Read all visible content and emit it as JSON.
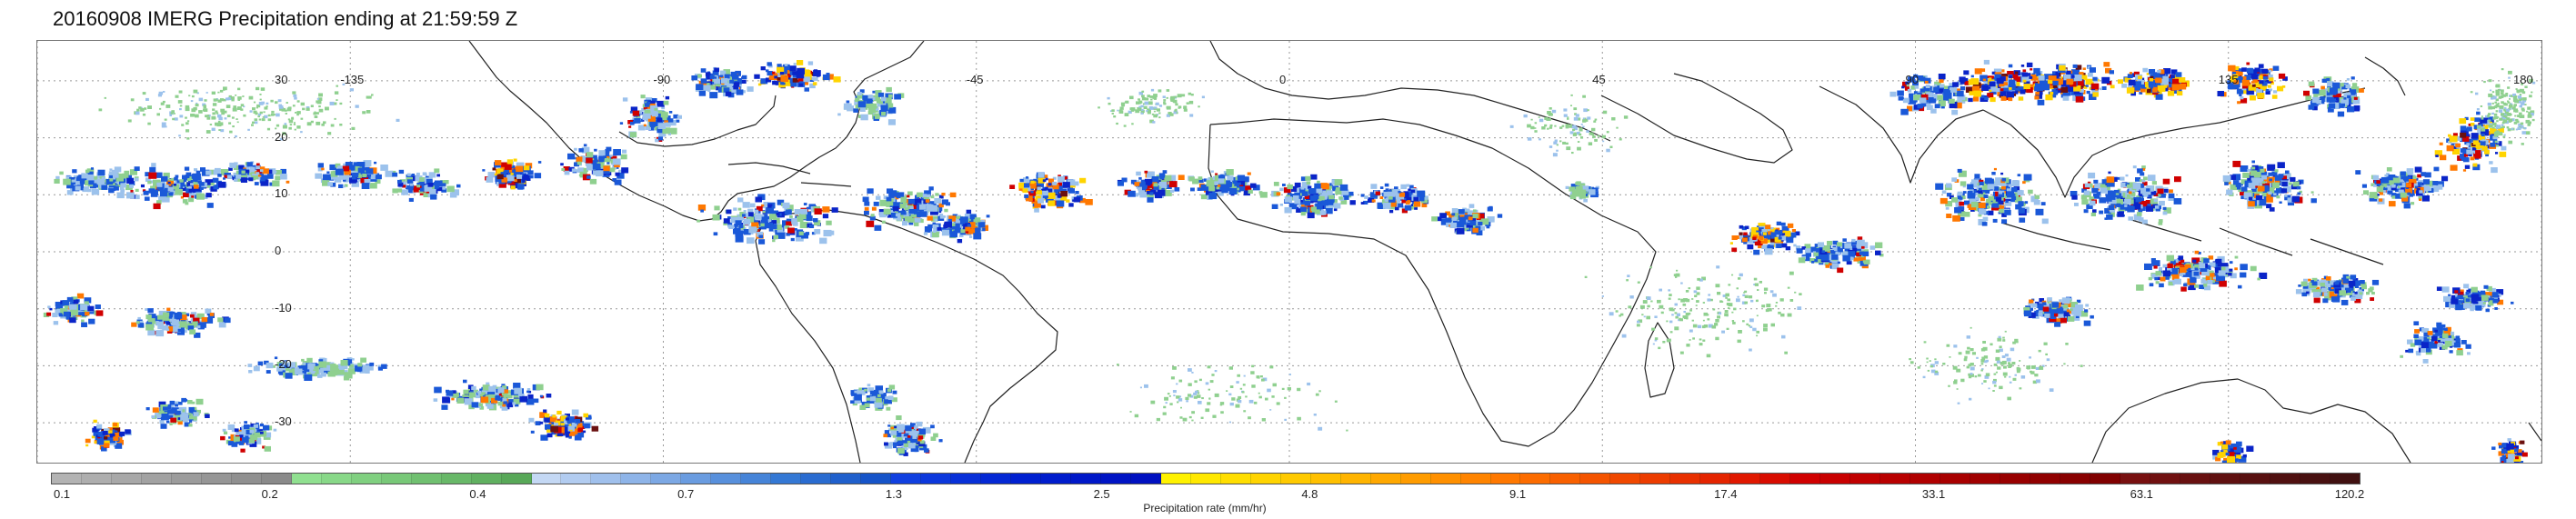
{
  "title": "20160908 IMERG Precipitation ending at 21:59:59 Z",
  "map": {
    "projection": "equirectangular",
    "lon_range": [
      -180,
      180
    ],
    "lat_range": [
      -37,
      37
    ],
    "gridlines": "dotted",
    "lon_labels": [
      "-135",
      "-90",
      "-45",
      "0",
      "45",
      "90",
      "135",
      "180"
    ],
    "lat_labels": [
      "30",
      "20",
      "10",
      "0",
      "-10",
      "-20",
      "-30"
    ]
  },
  "colorbar": {
    "label": "Precipitation rate (mm/hr)",
    "tick_labels": [
      "0.1",
      "0.2",
      "0.4",
      "0.7",
      "1.3",
      "2.5",
      "4.8",
      "9.1",
      "17.4",
      "33.1",
      "63.1",
      "120.2"
    ],
    "colors": [
      "#b3b3b3",
      "#aeaeae",
      "#a8a8a8",
      "#a2a2a2",
      "#9c9c9c",
      "#969696",
      "#909090",
      "#8a8a8a",
      "#90e090",
      "#88d888",
      "#80d080",
      "#78c878",
      "#70c070",
      "#68b868",
      "#60b060",
      "#58a858",
      "#c4d8f4",
      "#b2ccf0",
      "#a0c0ec",
      "#8eb4e8",
      "#7ca8e4",
      "#6a9ce0",
      "#5890dc",
      "#4684d8",
      "#3478d4",
      "#2a6cd0",
      "#2060cc",
      "#1654c8",
      "#1040e0",
      "#0c38dc",
      "#0830d8",
      "#0428d4",
      "#0020d0",
      "#001ccc",
      "#0018c8",
      "#0014c4",
      "#0010c0",
      "#fff200",
      "#ffe800",
      "#ffde00",
      "#ffd400",
      "#ffca00",
      "#ffc000",
      "#ffb400",
      "#ffa800",
      "#ff9c00",
      "#ff9000",
      "#ff8400",
      "#ff7800",
      "#fc6c00",
      "#f86000",
      "#f45400",
      "#f04800",
      "#ec3c00",
      "#e83000",
      "#e42400",
      "#e01800",
      "#d80c00",
      "#d00000",
      "#c80000",
      "#c00000",
      "#b80000",
      "#b00000",
      "#a80000",
      "#a00000",
      "#980000",
      "#900000",
      "#880000",
      "#800000",
      "#781010",
      "#701010",
      "#681010",
      "#601010",
      "#581010",
      "#501010",
      "#481010",
      "#401010"
    ]
  },
  "precip_colors": {
    "light": "#8fd08f",
    "lightblue": "#9cc2ec",
    "blue": "#1a58d8",
    "darkblue": "#0a24c8",
    "yellow": "#ffd400",
    "orange": "#ff7800",
    "red": "#d00000",
    "darkred": "#6a1010"
  }
}
